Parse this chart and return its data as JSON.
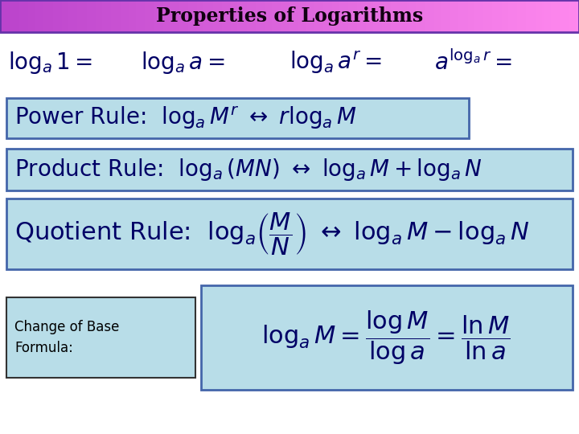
{
  "title": "Properties of Logarithms",
  "bg_color": "#ffffff",
  "title_color1": "#bb44cc",
  "title_color2": "#ff88ee",
  "title_text_color": "#110011",
  "box_bg_color": "#b8dde8",
  "box_edge_color": "#4466aa",
  "text_color": "#000066",
  "label_box_color": "#b8dde8",
  "label_box_edge": "#333333",
  "fs_main": 20,
  "fs_title": 17,
  "fs_label": 12
}
